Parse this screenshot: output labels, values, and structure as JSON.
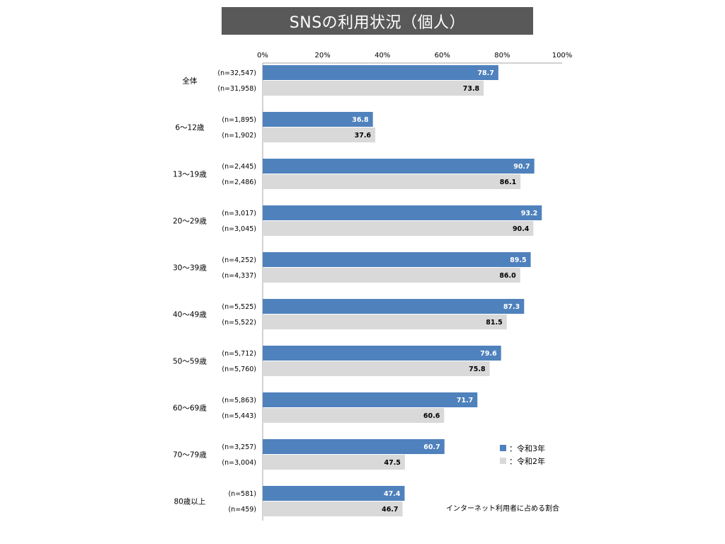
{
  "header": {
    "title": "SNSの利用状況（個人）"
  },
  "chart_data": {
    "type": "bar",
    "orientation": "horizontal",
    "xlim": [
      0,
      100
    ],
    "x_ticks": [
      "0%",
      "20%",
      "40%",
      "60%",
      "80%",
      "100%"
    ],
    "grid": false,
    "legend_position": "bottom-right",
    "categories": [
      "全体",
      "6～12歳",
      "13～19歳",
      "20～29歳",
      "30～39歳",
      "40～49歳",
      "50～59歳",
      "60～69歳",
      "70～79歳",
      "80歳以上"
    ],
    "series": [
      {
        "name": "令和3年",
        "color": "#4f81bd",
        "values": [
          78.7,
          36.8,
          90.7,
          93.2,
          89.5,
          87.3,
          79.6,
          71.7,
          60.7,
          47.4
        ],
        "n_labels": [
          "(n=32,547)",
          "(n=1,895)",
          "(n=2,445)",
          "(n=3,017)",
          "(n=4,252)",
          "(n=5,525)",
          "(n=5,712)",
          "(n=5,863)",
          "(n=3,257)",
          "(n=581)"
        ]
      },
      {
        "name": "令和2年",
        "color": "#d9d9d9",
        "values": [
          73.8,
          37.6,
          86.1,
          90.4,
          86.0,
          81.5,
          75.8,
          60.6,
          47.5,
          46.7
        ],
        "n_labels": [
          "(n=31,958)",
          "(n=1,902)",
          "(n=2,486)",
          "(n=3,045)",
          "(n=4,337)",
          "(n=5,522)",
          "(n=5,760)",
          "(n=5,443)",
          "(n=3,004)",
          "(n=459)"
        ]
      }
    ],
    "legend": [
      "：令和3年",
      "：令和2年"
    ],
    "annotation": "インターネット利用者に占める割合"
  }
}
